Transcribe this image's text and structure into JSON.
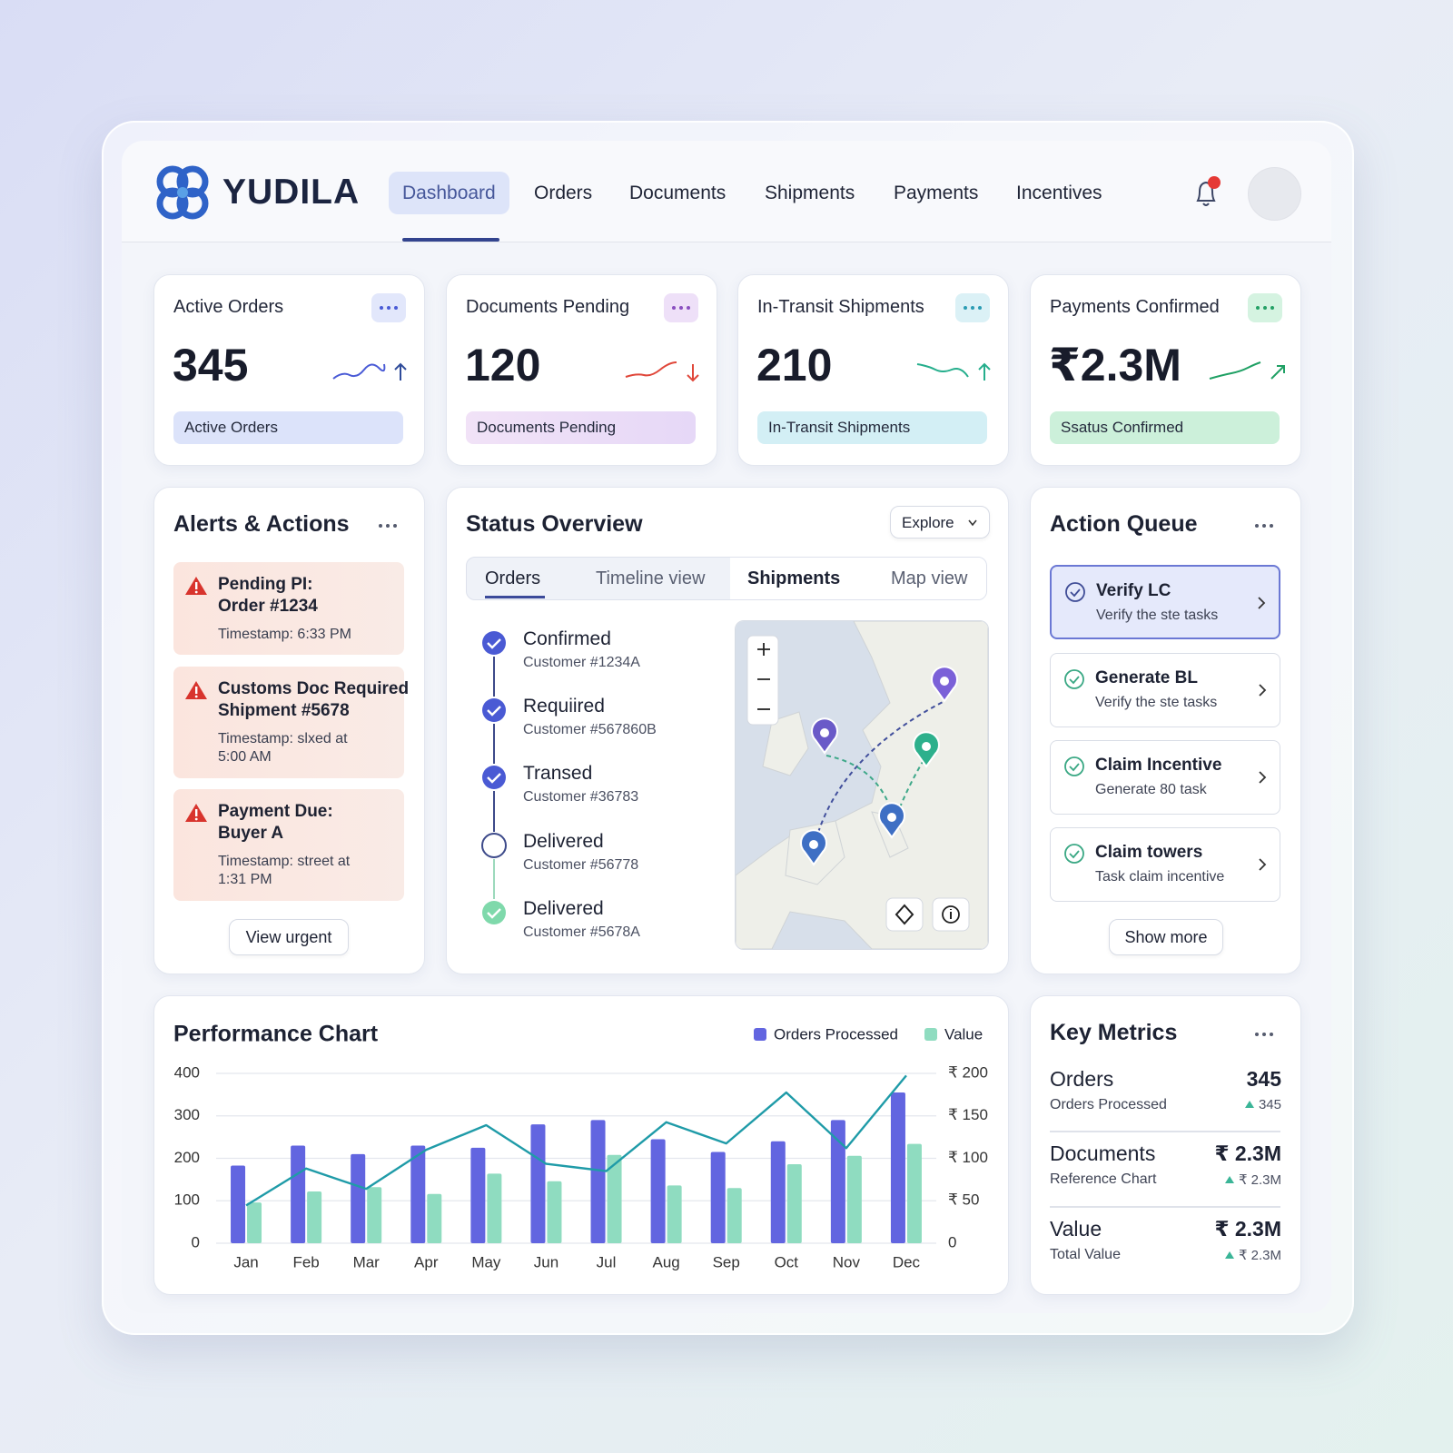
{
  "header": {
    "logo": "YUDILA",
    "nav": [
      "Dashboard",
      "Orders",
      "Documents",
      "Shipments",
      "Payments",
      "Incentives"
    ]
  },
  "kpis": [
    {
      "title": "Active Orders",
      "value": 345,
      "label": "Active Orders"
    },
    {
      "title": "Documents Pending",
      "value": 120,
      "label": "Documents Pending"
    },
    {
      "title": "In-Transit Shipments",
      "value": 210,
      "label": "In-Transit Shipments"
    },
    {
      "title": "Payments Confirmed",
      "value": "₹2.3M",
      "label": "Ssatus Confirmed"
    }
  ],
  "alerts": {
    "title": "Alerts & Actions",
    "items": [
      {
        "title": [
          "Pending PI:",
          "Order #1234"
        ],
        "timestamp": "Timestamp: 6:33 PM"
      },
      {
        "title": [
          "Customs Doc Required",
          "Shipment #5678"
        ],
        "timestamp": "Timestamp: slxed at 5:00 AM"
      },
      {
        "title": [
          "Payment Due:",
          "Buyer A"
        ],
        "timestamp": "Timestamp: street at 1:31 PM"
      }
    ],
    "button": "View urgent"
  },
  "status": {
    "title": "Status Overview",
    "button": "Explore",
    "tabs": [
      "Orders",
      "Timeline view",
      "Shipments",
      "Map view"
    ],
    "steps": [
      {
        "title": "Confirmed",
        "customer": "Customer #1234A"
      },
      {
        "title": "Requiired",
        "customer": "Customer #567860B"
      },
      {
        "title": "Transed",
        "customer": "Customer #36783"
      },
      {
        "title": "Delivered",
        "customer": "Customer #56778"
      },
      {
        "title": "Delivered",
        "customer": "Customer #5678A"
      }
    ]
  },
  "queue": {
    "title": "Action Queue",
    "items": [
      {
        "title": "Verify LC",
        "detail": "Verify the ste tasks"
      },
      {
        "title": "Generate BL",
        "detail": "Verify the ste tasks"
      },
      {
        "title": "Claim Incentive",
        "detail": "Generate 80 task"
      },
      {
        "title": "Claim towers",
        "detail": "Task claim incentive"
      }
    ],
    "button": "Show more"
  },
  "chart_data": {
    "type": "bar",
    "title": "Performance Chart",
    "categories": [
      "Jan",
      "Feb",
      "Mar",
      "Apr",
      "May",
      "Jun",
      "Jul",
      "Aug",
      "Sep",
      "Oct",
      "Nov",
      "Dec"
    ],
    "series": [
      {
        "name": "Orders Processed",
        "color": "#6265e0",
        "values": [
          183,
          230,
          210,
          230,
          225,
          280,
          290,
          245,
          215,
          240,
          290,
          355
        ]
      },
      {
        "name": "Value",
        "color": "#8fdcc0",
        "axis": "y2",
        "values": [
          48,
          61,
          66,
          58,
          82,
          73,
          104,
          68,
          65,
          93,
          103,
          117
        ]
      },
      {
        "type": "line",
        "color": "#1f9ba8",
        "values": [
          89,
          176,
          128,
          220,
          278,
          187,
          170,
          285,
          235,
          355,
          224,
          395
        ]
      }
    ],
    "ylim": [
      0,
      400
    ],
    "yticks": [
      0,
      100,
      200,
      300,
      400
    ],
    "y2lim": [
      0,
      200
    ],
    "y2ticks": [
      0,
      {
        "value": 50,
        "label": "₹ 50"
      },
      {
        "value": 100,
        "label": "₹ 100"
      },
      {
        "value": 150,
        "label": "₹ 150"
      },
      {
        "value": 200,
        "label": "₹ 200"
      }
    ],
    "grid": true
  },
  "metrics": {
    "title": "Key Metrics",
    "rows": [
      {
        "label": "Orders",
        "sub": "Orders Processed",
        "value": 345,
        "change": 345
      },
      {
        "label": "Documents",
        "sub": "Reference Chart",
        "value": "₹ 2.3M",
        "change": "₹ 2.3M"
      },
      {
        "label": "Value",
        "sub": "Total Value",
        "value": "₹ 2.3M",
        "change": "₹ 2.3M"
      }
    ]
  }
}
